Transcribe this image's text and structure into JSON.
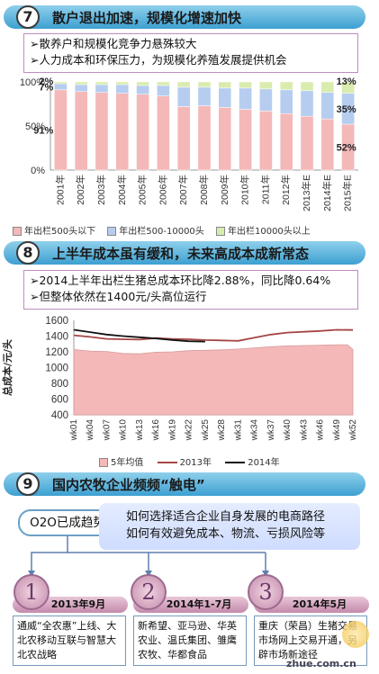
{
  "section7": {
    "number": "7",
    "title": "散户退出加速，规模化增速加快",
    "bullets": [
      "➢散养户和规模化竞争力悬殊较大",
      "➢人力成本和环保压力，为规模化养殖发展提供机会"
    ]
  },
  "section8": {
    "number": "8",
    "title": "上半年成本虽有缓和，未来高成本成新常态",
    "bullets": [
      "➢2014上半年出栏生猪总成本环比降2.88%，同比降0.64%",
      "➢但整体依然在1400元/头高位运行"
    ]
  },
  "section9": {
    "number": "9",
    "title": "国内农牧企业频频“触电”",
    "o2o_label": "O2O已成趋势",
    "question_lines": [
      "如何选择适合企业自身发展的电商路径",
      "如何有效避免成本、物流、亏损风险等"
    ],
    "timeline": [
      {
        "num": "1",
        "date": "2013年9月",
        "text": "通威“全农惠”上线、大北农移动互联与智慧大北农战略"
      },
      {
        "num": "2",
        "date": "2014年1-7月",
        "text": "新希望、亚马逊、华英农业、温氏集团、雏鹰农牧、华都食品"
      },
      {
        "num": "3",
        "date": "2014年5月",
        "text": "重庆（荣昌）生猪交易市场网上交易开通，另辟市场新途径"
      }
    ],
    "watermark": "zhue.com.cn"
  },
  "chart_data": [
    {
      "type": "bar",
      "stacked": true,
      "percent": true,
      "categories": [
        "2001年",
        "2002年",
        "2003年",
        "2004年",
        "2005年",
        "2006年",
        "2007年",
        "2008年",
        "2009年",
        "2010年",
        "2011年",
        "2012年",
        "2013年E",
        "2014年E",
        "2015年E"
      ],
      "series": [
        {
          "name": "年出栏500头以下",
          "color": "#f4b8b8",
          "values": [
            91,
            89,
            88,
            87,
            86,
            84,
            72,
            73,
            71,
            69,
            67,
            64,
            61,
            58,
            52
          ]
        },
        {
          "name": "年出栏500-10000头",
          "color": "#b6cdf0",
          "values": [
            7,
            8,
            9,
            10,
            10,
            12,
            22,
            21,
            22,
            24,
            25,
            27,
            29,
            30,
            35
          ]
        },
        {
          "name": "年出栏10000头以上",
          "color": "#d9ecae",
          "values": [
            2,
            3,
            3,
            3,
            4,
            4,
            6,
            6,
            7,
            7,
            8,
            9,
            10,
            12,
            13
          ]
        }
      ],
      "data_labels": {
        "first": [
          "91%",
          "7%",
          "2%"
        ],
        "last": [
          "52%",
          "35%",
          "13%"
        ]
      },
      "yticks": [
        "0%",
        "50%",
        "100%"
      ],
      "ylim": [
        0,
        100
      ]
    },
    {
      "type": "line",
      "ylabel": "总成本/元/头",
      "ylim": [
        400,
        1600
      ],
      "yticks": [
        400,
        600,
        800,
        1000,
        1200,
        1400,
        1600
      ],
      "xticks": [
        "wk01",
        "wk04",
        "wk07",
        "wk10",
        "wk13",
        "wk16",
        "wk19",
        "wk22",
        "wk25",
        "wk28",
        "wk31",
        "wk34",
        "wk37",
        "wk40",
        "wk43",
        "wk46",
        "wk49",
        "wk52"
      ],
      "xtick_weeks": [
        1,
        4,
        7,
        10,
        13,
        16,
        19,
        22,
        25,
        28,
        31,
        34,
        37,
        40,
        43,
        46,
        49,
        52
      ],
      "series": [
        {
          "name": "5年均值",
          "color": "#f4b8b8",
          "kind": "area",
          "points": [
            [
              1,
              1230
            ],
            [
              4,
              1210
            ],
            [
              7,
              1205
            ],
            [
              10,
              1180
            ],
            [
              13,
              1175
            ],
            [
              16,
              1195
            ],
            [
              19,
              1200
            ],
            [
              22,
              1215
            ],
            [
              25,
              1220
            ],
            [
              28,
              1225
            ],
            [
              31,
              1235
            ],
            [
              34,
              1250
            ],
            [
              37,
              1265
            ],
            [
              40,
              1275
            ],
            [
              43,
              1280
            ],
            [
              46,
              1285
            ],
            [
              49,
              1290
            ],
            [
              51,
              1290
            ],
            [
              52,
              1230
            ]
          ]
        },
        {
          "name": "2013年",
          "color": "#a64545",
          "kind": "line",
          "points": [
            [
              1,
              1410
            ],
            [
              4,
              1390
            ],
            [
              7,
              1365
            ],
            [
              10,
              1360
            ],
            [
              13,
              1355
            ],
            [
              16,
              1375
            ],
            [
              19,
              1365
            ],
            [
              22,
              1360
            ],
            [
              25,
              1350
            ],
            [
              28,
              1345
            ],
            [
              31,
              1340
            ],
            [
              34,
              1380
            ],
            [
              37,
              1420
            ],
            [
              40,
              1445
            ],
            [
              43,
              1455
            ],
            [
              46,
              1465
            ],
            [
              49,
              1480
            ],
            [
              52,
              1478
            ]
          ]
        },
        {
          "name": "2014年",
          "color": "#111111",
          "kind": "line",
          "points": [
            [
              1,
              1480
            ],
            [
              4,
              1450
            ],
            [
              7,
              1420
            ],
            [
              10,
              1400
            ],
            [
              13,
              1385
            ],
            [
              16,
              1370
            ],
            [
              19,
              1350
            ],
            [
              22,
              1335
            ],
            [
              25,
              1330
            ]
          ]
        }
      ]
    }
  ]
}
